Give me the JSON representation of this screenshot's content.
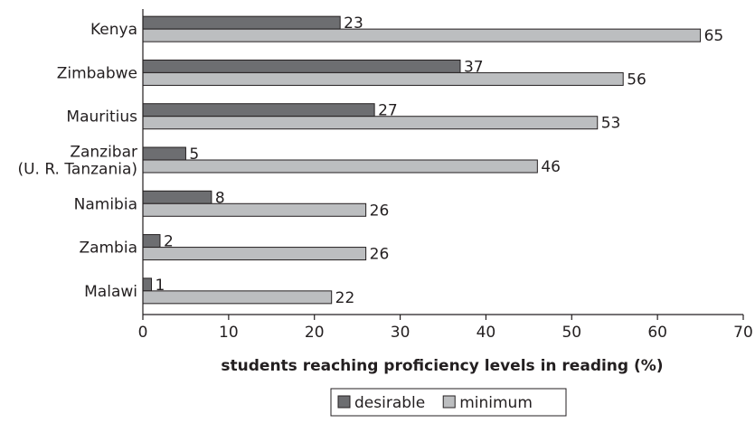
{
  "chart_data": {
    "type": "bar",
    "orientation": "horizontal",
    "categories": [
      [
        "Kenya"
      ],
      [
        "Zimbabwe"
      ],
      [
        "Mauritius"
      ],
      [
        "Zanzibar",
        "(U. R. Tanzania)"
      ],
      [
        "Namibia"
      ],
      [
        "Zambia"
      ],
      [
        "Malawi"
      ]
    ],
    "series": [
      {
        "name": "desirable",
        "values": [
          23,
          37,
          27,
          5,
          8,
          2,
          1
        ],
        "color": "#6d6e71"
      },
      {
        "name": "minimum",
        "values": [
          65,
          56,
          53,
          46,
          26,
          26,
          22
        ],
        "color": "#bcbec0"
      }
    ],
    "xlabel": "students reaching proficiency levels in reading (%)",
    "xlim": [
      0,
      70
    ],
    "xticks": [
      0,
      10,
      20,
      30,
      40,
      50,
      60,
      70
    ],
    "grid": false,
    "legend_position": "bottom"
  }
}
